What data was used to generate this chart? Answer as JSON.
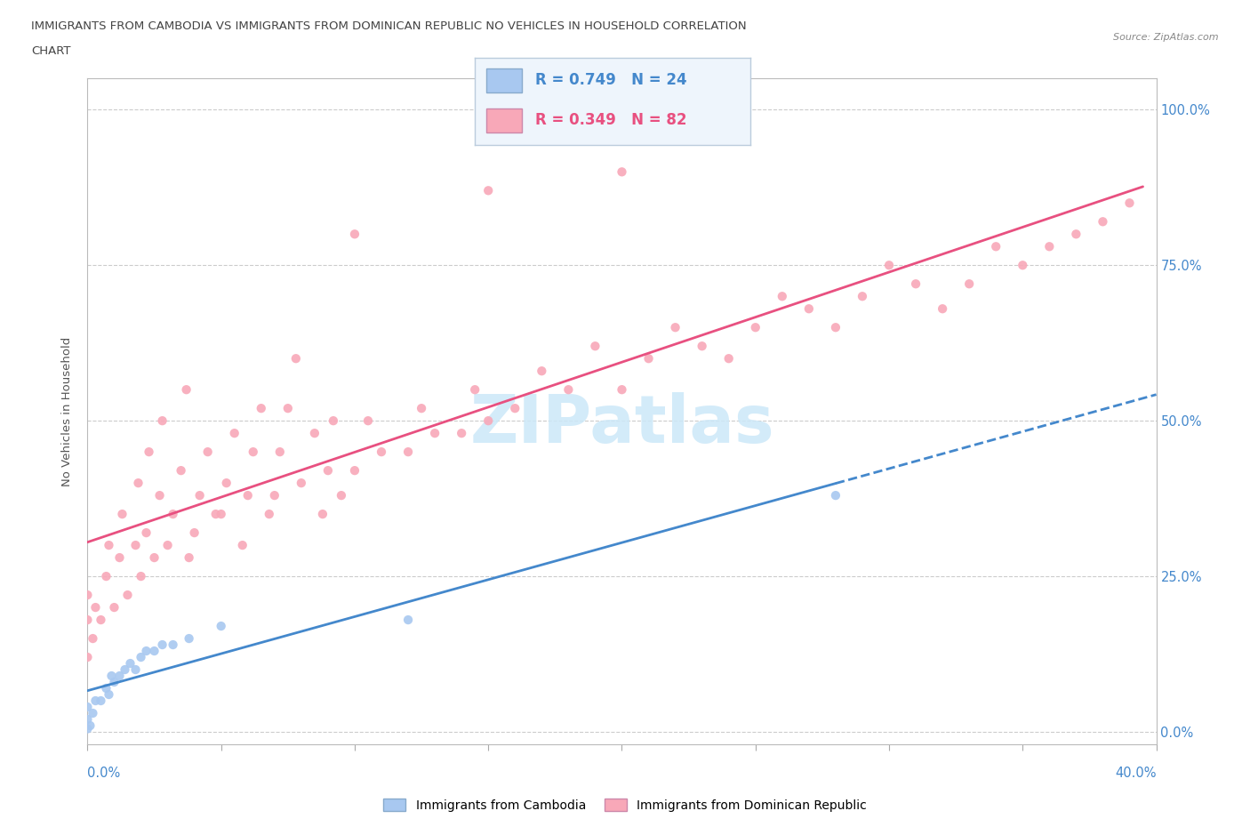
{
  "title_line1": "IMMIGRANTS FROM CAMBODIA VS IMMIGRANTS FROM DOMINICAN REPUBLIC NO VEHICLES IN HOUSEHOLD CORRELATION",
  "title_line2": "CHART",
  "source": "Source: ZipAtlas.com",
  "ylabel": "No Vehicles in Household",
  "yticks_labels": [
    "0.0%",
    "25.0%",
    "50.0%",
    "75.0%",
    "100.0%"
  ],
  "ytick_vals": [
    0.0,
    0.25,
    0.5,
    0.75,
    1.0
  ],
  "xlim": [
    0.0,
    0.4
  ],
  "ylim": [
    -0.02,
    1.05
  ],
  "watermark": "ZIPatlas",
  "cambodia_color": "#a8c8f0",
  "dominican_color": "#f8a8b8",
  "cambodia_line_color": "#4488cc",
  "dominican_line_color": "#e85080",
  "cambodia_line_solid_end": 0.28,
  "dominican_line_end": 0.395,
  "cam_x": [
    0.0,
    0.0,
    0.0,
    0.001,
    0.002,
    0.003,
    0.005,
    0.007,
    0.008,
    0.009,
    0.01,
    0.012,
    0.014,
    0.016,
    0.018,
    0.02,
    0.022,
    0.025,
    0.028,
    0.032,
    0.038,
    0.05,
    0.12,
    0.28
  ],
  "cam_y": [
    0.005,
    0.02,
    0.04,
    0.01,
    0.03,
    0.05,
    0.05,
    0.07,
    0.06,
    0.09,
    0.08,
    0.09,
    0.1,
    0.11,
    0.1,
    0.12,
    0.13,
    0.13,
    0.14,
    0.14,
    0.15,
    0.17,
    0.18,
    0.38
  ],
  "dom_x": [
    0.0,
    0.0,
    0.0,
    0.002,
    0.003,
    0.005,
    0.007,
    0.008,
    0.01,
    0.012,
    0.013,
    0.015,
    0.018,
    0.019,
    0.02,
    0.022,
    0.023,
    0.025,
    0.027,
    0.028,
    0.03,
    0.032,
    0.035,
    0.037,
    0.038,
    0.04,
    0.042,
    0.045,
    0.048,
    0.05,
    0.052,
    0.055,
    0.058,
    0.06,
    0.062,
    0.065,
    0.068,
    0.07,
    0.072,
    0.075,
    0.078,
    0.08,
    0.085,
    0.088,
    0.09,
    0.092,
    0.095,
    0.1,
    0.105,
    0.11,
    0.12,
    0.125,
    0.13,
    0.14,
    0.145,
    0.15,
    0.16,
    0.17,
    0.18,
    0.19,
    0.2,
    0.21,
    0.22,
    0.23,
    0.24,
    0.25,
    0.26,
    0.27,
    0.28,
    0.29,
    0.3,
    0.31,
    0.32,
    0.33,
    0.34,
    0.35,
    0.36,
    0.37,
    0.38,
    0.39,
    0.1,
    0.15,
    0.2
  ],
  "dom_y": [
    0.12,
    0.18,
    0.22,
    0.15,
    0.2,
    0.18,
    0.25,
    0.3,
    0.2,
    0.28,
    0.35,
    0.22,
    0.3,
    0.4,
    0.25,
    0.32,
    0.45,
    0.28,
    0.38,
    0.5,
    0.3,
    0.35,
    0.42,
    0.55,
    0.28,
    0.32,
    0.38,
    0.45,
    0.35,
    0.35,
    0.4,
    0.48,
    0.3,
    0.38,
    0.45,
    0.52,
    0.35,
    0.38,
    0.45,
    0.52,
    0.6,
    0.4,
    0.48,
    0.35,
    0.42,
    0.5,
    0.38,
    0.42,
    0.5,
    0.45,
    0.45,
    0.52,
    0.48,
    0.48,
    0.55,
    0.5,
    0.52,
    0.58,
    0.55,
    0.62,
    0.55,
    0.6,
    0.65,
    0.62,
    0.6,
    0.65,
    0.7,
    0.68,
    0.65,
    0.7,
    0.75,
    0.72,
    0.68,
    0.72,
    0.78,
    0.75,
    0.78,
    0.8,
    0.82,
    0.85,
    0.8,
    0.87,
    0.9
  ]
}
